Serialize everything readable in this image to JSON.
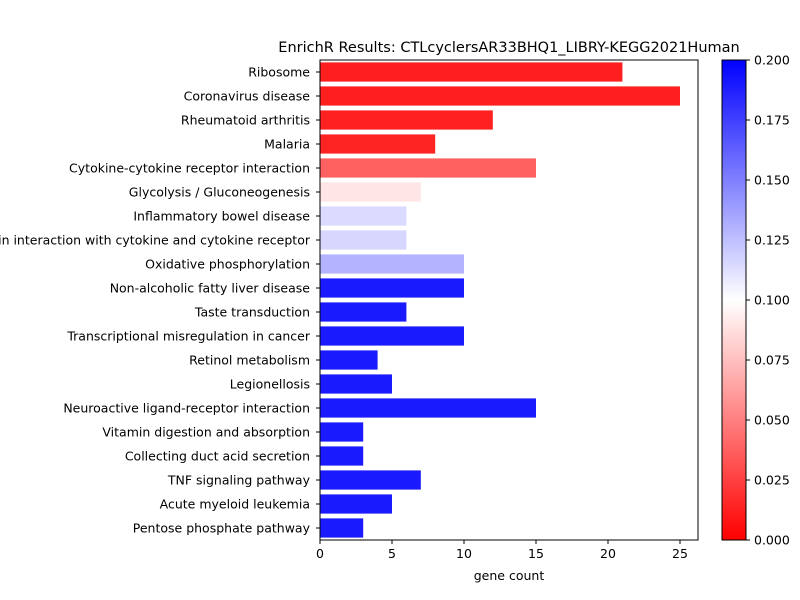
{
  "chart_data": {
    "type": "bar",
    "orientation": "horizontal",
    "title": "EnrichR Results: CTLcyclersAR33BHQ1_LIBRY-KEGG2021Human",
    "xlabel": "gene count",
    "ylabel": "",
    "xlim": [
      0,
      26.25
    ],
    "x_ticks": [
      0,
      5,
      10,
      15,
      20,
      25
    ],
    "grid": false,
    "categories": [
      "Ribosome",
      "Coronavirus disease",
      "Rheumatoid arthritis",
      "Malaria",
      "Cytokine-cytokine receptor interaction",
      "Glycolysis / Gluconeogenesis",
      "Inflammatory bowel disease",
      "Viral protein interaction with cytokine and cytokine receptor",
      "Oxidative phosphorylation",
      "Non-alcoholic fatty liver disease",
      "Taste transduction",
      "Transcriptional misregulation in cancer",
      "Retinol metabolism",
      "Legionellosis",
      "Neuroactive ligand-receptor interaction",
      "Vitamin digestion and absorption",
      "Collecting duct acid secretion",
      "TNF signaling pathway",
      "Acute myeloid leukemia",
      "Pentose phosphate pathway"
    ],
    "values": [
      21,
      25,
      12,
      8,
      15,
      7,
      6,
      6,
      10,
      10,
      6,
      10,
      4,
      5,
      15,
      3,
      3,
      7,
      5,
      3
    ],
    "color_values": [
      0.012,
      0.012,
      0.013,
      0.014,
      0.038,
      0.09,
      0.114,
      0.116,
      0.13,
      0.19,
      0.19,
      0.19,
      0.19,
      0.19,
      0.19,
      0.19,
      0.19,
      0.19,
      0.19,
      0.19
    ],
    "colorbar": {
      "range": [
        0,
        0.2
      ],
      "ticks": [
        "0.000",
        "0.025",
        "0.050",
        "0.075",
        "0.100",
        "0.125",
        "0.150",
        "0.175",
        "0.200"
      ],
      "colormap": [
        "#ff0000",
        "#ffffff",
        "#0000ff"
      ]
    }
  }
}
